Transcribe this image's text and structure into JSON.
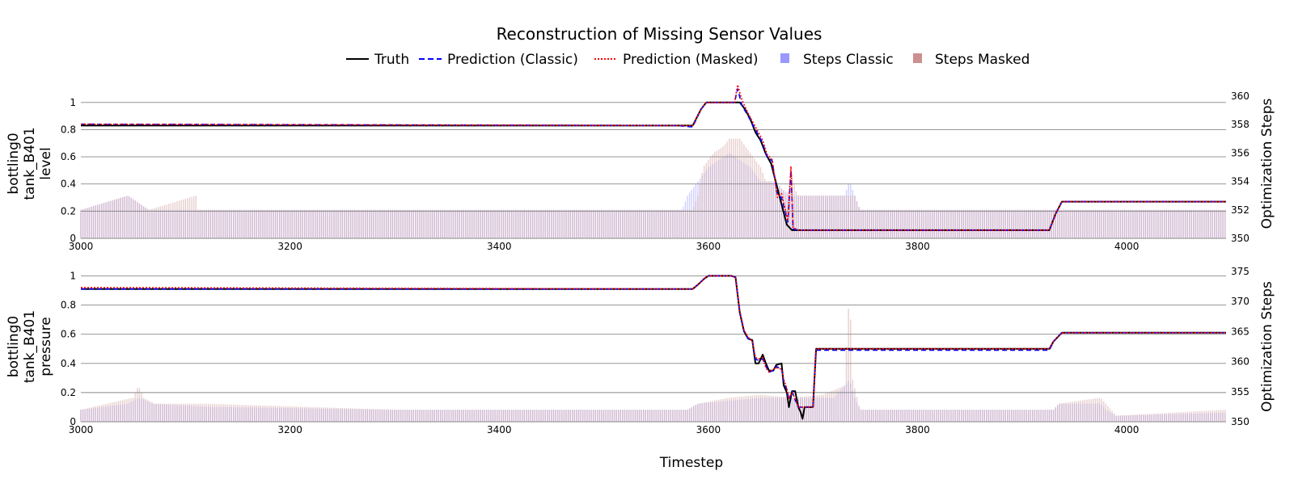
{
  "chart_data": {
    "type": "line",
    "title": "Reconstruction of Missing Sensor Values",
    "xlabel": "Timestep",
    "legend": {
      "placement": "top-center",
      "entries": [
        {
          "label": "Truth",
          "color": "#000000",
          "style": "solid"
        },
        {
          "label": "Prediction (Classic)",
          "color": "#0000ff",
          "style": "dashed"
        },
        {
          "label": "Prediction (Masked)",
          "color": "#ff0000",
          "style": "dotted"
        },
        {
          "label": "Steps Classic",
          "color": "#9999ff",
          "style": "patch"
        },
        {
          "label": "Steps Masked",
          "color": "#cc8f8f",
          "style": "patch"
        }
      ]
    },
    "colors": {
      "truth": "#000000",
      "classic": "#0000ff",
      "masked": "#ff0000",
      "steps_classic": "#9999ff",
      "steps_masked": "#d4a2a2"
    },
    "panels": [
      {
        "ylabel": [
          "bottling0",
          "tank_B401",
          "level"
        ],
        "y2label": "Optimization Steps",
        "xlim": [
          3000,
          4095
        ],
        "ylim": [
          0,
          1.1
        ],
        "y2lim": [
          350,
          360.5
        ],
        "xticks": [
          "3000",
          "3200",
          "3400",
          "3600",
          "3800",
          "4000"
        ],
        "yticks": [
          "0",
          "0.2",
          "0.4",
          "0.6",
          "0.8",
          "1"
        ],
        "y2ticks": [
          "350",
          "352",
          "354",
          "356",
          "358",
          "360"
        ],
        "grid": true,
        "truth": [
          [
            3000,
            0.83
          ],
          [
            3570,
            0.83
          ],
          [
            3585,
            0.83
          ],
          [
            3593,
            0.95
          ],
          [
            3598,
            1.0
          ],
          [
            3625,
            1.0
          ],
          [
            3630,
            1.0
          ],
          [
            3635,
            0.95
          ],
          [
            3640,
            0.88
          ],
          [
            3645,
            0.78
          ],
          [
            3650,
            0.72
          ],
          [
            3655,
            0.62
          ],
          [
            3660,
            0.55
          ],
          [
            3665,
            0.4
          ],
          [
            3670,
            0.25
          ],
          [
            3675,
            0.1
          ],
          [
            3680,
            0.06
          ],
          [
            3685,
            0.06
          ],
          [
            3926,
            0.06
          ],
          [
            3932,
            0.18
          ],
          [
            3938,
            0.27
          ],
          [
            4095,
            0.27
          ]
        ],
        "classic": [
          [
            3000,
            0.84
          ],
          [
            3570,
            0.83
          ],
          [
            3585,
            0.82
          ],
          [
            3593,
            0.95
          ],
          [
            3598,
            1.0
          ],
          [
            3625,
            1.0
          ],
          [
            3628,
            1.1
          ],
          [
            3632,
            0.98
          ],
          [
            3638,
            0.9
          ],
          [
            3645,
            0.8
          ],
          [
            3652,
            0.7
          ],
          [
            3656,
            0.6
          ],
          [
            3661,
            0.57
          ],
          [
            3666,
            0.32
          ],
          [
            3670,
            0.3
          ],
          [
            3676,
            0.12
          ],
          [
            3679,
            0.5
          ],
          [
            3681,
            0.07
          ],
          [
            3686,
            0.06
          ],
          [
            3926,
            0.06
          ],
          [
            3932,
            0.18
          ],
          [
            3938,
            0.27
          ],
          [
            4095,
            0.27
          ]
        ],
        "masked": [
          [
            3000,
            0.84
          ],
          [
            3570,
            0.83
          ],
          [
            3585,
            0.83
          ],
          [
            3593,
            0.95
          ],
          [
            3598,
            1.0
          ],
          [
            3625,
            1.0
          ],
          [
            3628,
            1.13
          ],
          [
            3632,
            1.02
          ],
          [
            3638,
            0.92
          ],
          [
            3645,
            0.82
          ],
          [
            3652,
            0.72
          ],
          [
            3656,
            0.62
          ],
          [
            3661,
            0.58
          ],
          [
            3666,
            0.3
          ],
          [
            3670,
            0.33
          ],
          [
            3676,
            0.13
          ],
          [
            3679,
            0.53
          ],
          [
            3681,
            0.08
          ],
          [
            3686,
            0.06
          ],
          [
            3926,
            0.06
          ],
          [
            3932,
            0.18
          ],
          [
            3938,
            0.27
          ],
          [
            4095,
            0.27
          ]
        ],
        "steps_classic": [
          [
            3000,
            352
          ],
          [
            3045,
            353
          ],
          [
            3065,
            352
          ],
          [
            3575,
            352
          ],
          [
            3580,
            353
          ],
          [
            3590,
            354
          ],
          [
            3600,
            355
          ],
          [
            3610,
            355.5
          ],
          [
            3620,
            356
          ],
          [
            3640,
            355
          ],
          [
            3650,
            354
          ],
          [
            3660,
            354
          ],
          [
            3670,
            353.5
          ],
          [
            3680,
            353
          ],
          [
            3690,
            353
          ],
          [
            3730,
            353
          ],
          [
            3735,
            354
          ],
          [
            3740,
            353
          ],
          [
            3745,
            352
          ],
          [
            4095,
            352
          ]
        ],
        "steps_masked": [
          [
            3000,
            352
          ],
          [
            3045,
            353
          ],
          [
            3065,
            352
          ],
          [
            3110,
            353
          ],
          [
            3112,
            352
          ],
          [
            3585,
            352
          ],
          [
            3590,
            353
          ],
          [
            3595,
            355
          ],
          [
            3605,
            356
          ],
          [
            3615,
            356.5
          ],
          [
            3620,
            357
          ],
          [
            3630,
            357
          ],
          [
            3640,
            356
          ],
          [
            3650,
            355
          ],
          [
            3655,
            354
          ],
          [
            3665,
            354
          ],
          [
            3670,
            353.5
          ],
          [
            3675,
            353
          ],
          [
            3680,
            354.5
          ],
          [
            3685,
            353
          ],
          [
            3740,
            353
          ],
          [
            3745,
            352
          ],
          [
            4095,
            352
          ]
        ]
      },
      {
        "ylabel": [
          "bottling0",
          "tank_B401",
          "pressure"
        ],
        "y2label": "Optimization Steps",
        "xlim": [
          3000,
          4095
        ],
        "ylim": [
          0,
          1.03
        ],
        "y2lim": [
          350,
          375
        ],
        "xticks": [
          "3000",
          "3200",
          "3400",
          "3600",
          "3800",
          "4000"
        ],
        "yticks": [
          "0",
          "0.2",
          "0.4",
          "0.6",
          "0.8",
          "1"
        ],
        "y2ticks": [
          "350",
          "355",
          "360",
          "365",
          "370",
          "375"
        ],
        "grid": true,
        "truth": [
          [
            3000,
            0.91
          ],
          [
            3585,
            0.91
          ],
          [
            3590,
            0.94
          ],
          [
            3596,
            0.98
          ],
          [
            3600,
            1.0
          ],
          [
            3622,
            1.0
          ],
          [
            3626,
            0.99
          ],
          [
            3630,
            0.75
          ],
          [
            3634,
            0.62
          ],
          [
            3638,
            0.57
          ],
          [
            3642,
            0.56
          ],
          [
            3645,
            0.4
          ],
          [
            3648,
            0.4
          ],
          [
            3652,
            0.46
          ],
          [
            3655,
            0.4
          ],
          [
            3658,
            0.35
          ],
          [
            3662,
            0.35
          ],
          [
            3665,
            0.39
          ],
          [
            3670,
            0.4
          ],
          [
            3672,
            0.25
          ],
          [
            3675,
            0.2
          ],
          [
            3677,
            0.1
          ],
          [
            3680,
            0.21
          ],
          [
            3683,
            0.21
          ],
          [
            3686,
            0.1
          ],
          [
            3688,
            0.07
          ],
          [
            3690,
            0.02
          ],
          [
            3692,
            0.1
          ],
          [
            3700,
            0.1
          ],
          [
            3703,
            0.5
          ],
          [
            3926,
            0.5
          ],
          [
            3930,
            0.55
          ],
          [
            3938,
            0.61
          ],
          [
            4095,
            0.61
          ]
        ],
        "classic": [
          [
            3000,
            0.91
          ],
          [
            3585,
            0.91
          ],
          [
            3590,
            0.94
          ],
          [
            3596,
            0.98
          ],
          [
            3600,
            1.0
          ],
          [
            3622,
            1.0
          ],
          [
            3626,
            0.99
          ],
          [
            3630,
            0.75
          ],
          [
            3634,
            0.62
          ],
          [
            3638,
            0.57
          ],
          [
            3642,
            0.55
          ],
          [
            3645,
            0.43
          ],
          [
            3648,
            0.42
          ],
          [
            3652,
            0.43
          ],
          [
            3655,
            0.38
          ],
          [
            3658,
            0.34
          ],
          [
            3662,
            0.35
          ],
          [
            3665,
            0.38
          ],
          [
            3670,
            0.36
          ],
          [
            3672,
            0.28
          ],
          [
            3675,
            0.22
          ],
          [
            3677,
            0.15
          ],
          [
            3680,
            0.21
          ],
          [
            3683,
            0.15
          ],
          [
            3686,
            0.1
          ],
          [
            3690,
            0.1
          ],
          [
            3700,
            0.1
          ],
          [
            3703,
            0.49
          ],
          [
            3926,
            0.49
          ],
          [
            3930,
            0.55
          ],
          [
            3938,
            0.61
          ],
          [
            4095,
            0.61
          ]
        ],
        "masked": [
          [
            3000,
            0.92
          ],
          [
            3585,
            0.91
          ],
          [
            3590,
            0.94
          ],
          [
            3596,
            0.98
          ],
          [
            3600,
            1.0
          ],
          [
            3622,
            1.0
          ],
          [
            3626,
            0.99
          ],
          [
            3630,
            0.76
          ],
          [
            3634,
            0.63
          ],
          [
            3638,
            0.58
          ],
          [
            3642,
            0.55
          ],
          [
            3645,
            0.44
          ],
          [
            3648,
            0.43
          ],
          [
            3652,
            0.44
          ],
          [
            3655,
            0.37
          ],
          [
            3658,
            0.34
          ],
          [
            3662,
            0.36
          ],
          [
            3665,
            0.37
          ],
          [
            3670,
            0.36
          ],
          [
            3672,
            0.29
          ],
          [
            3675,
            0.23
          ],
          [
            3677,
            0.16
          ],
          [
            3680,
            0.2
          ],
          [
            3683,
            0.16
          ],
          [
            3686,
            0.1
          ],
          [
            3690,
            0.1
          ],
          [
            3700,
            0.1
          ],
          [
            3703,
            0.5
          ],
          [
            3926,
            0.5
          ],
          [
            3930,
            0.55
          ],
          [
            3938,
            0.61
          ],
          [
            4095,
            0.61
          ]
        ],
        "steps_classic": [
          [
            3000,
            352
          ],
          [
            3045,
            353
          ],
          [
            3055,
            354
          ],
          [
            3070,
            353
          ],
          [
            3120,
            352.5
          ],
          [
            3300,
            352
          ],
          [
            3580,
            352
          ],
          [
            3590,
            353
          ],
          [
            3620,
            353.5
          ],
          [
            3650,
            354
          ],
          [
            3680,
            354
          ],
          [
            3720,
            354
          ],
          [
            3735,
            357
          ],
          [
            3740,
            354
          ],
          [
            3745,
            352
          ],
          [
            3930,
            352
          ],
          [
            3935,
            353
          ],
          [
            3975,
            353
          ],
          [
            3980,
            352
          ],
          [
            3990,
            351
          ],
          [
            4095,
            351.5
          ]
        ],
        "steps_masked": [
          [
            3000,
            352
          ],
          [
            3050,
            354
          ],
          [
            3055,
            356
          ],
          [
            3060,
            354
          ],
          [
            3070,
            353
          ],
          [
            3120,
            353
          ],
          [
            3300,
            352
          ],
          [
            3580,
            352
          ],
          [
            3590,
            353
          ],
          [
            3620,
            354
          ],
          [
            3650,
            354.5
          ],
          [
            3680,
            354
          ],
          [
            3710,
            354.5
          ],
          [
            3730,
            356
          ],
          [
            3735,
            372
          ],
          [
            3738,
            357
          ],
          [
            3745,
            352
          ],
          [
            3930,
            352
          ],
          [
            3935,
            353
          ],
          [
            3975,
            354
          ],
          [
            3980,
            353
          ],
          [
            3990,
            351
          ],
          [
            4095,
            352
          ]
        ]
      }
    ]
  }
}
